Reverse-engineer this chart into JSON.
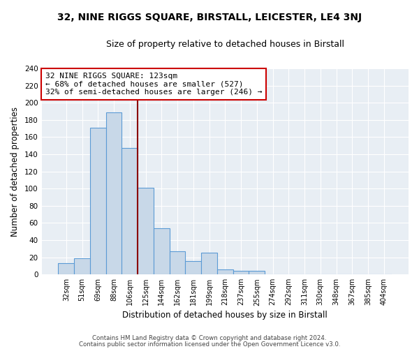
{
  "title": "32, NINE RIGGS SQUARE, BIRSTALL, LEICESTER, LE4 3NJ",
  "subtitle": "Size of property relative to detached houses in Birstall",
  "xlabel": "Distribution of detached houses by size in Birstall",
  "ylabel": "Number of detached properties",
  "bar_color": "#c8d8e8",
  "bar_edge_color": "#5b9bd5",
  "plot_bg_color": "#e8eef4",
  "fig_bg_color": "#ffffff",
  "categories": [
    "32sqm",
    "51sqm",
    "69sqm",
    "88sqm",
    "106sqm",
    "125sqm",
    "144sqm",
    "162sqm",
    "181sqm",
    "199sqm",
    "218sqm",
    "237sqm",
    "255sqm",
    "274sqm",
    "292sqm",
    "311sqm",
    "330sqm",
    "348sqm",
    "367sqm",
    "385sqm",
    "404sqm"
  ],
  "values": [
    13,
    19,
    171,
    189,
    147,
    101,
    54,
    27,
    16,
    25,
    6,
    4,
    4,
    0,
    0,
    0,
    0,
    0,
    0,
    0,
    0
  ],
  "ylim": [
    0,
    240
  ],
  "yticks": [
    0,
    20,
    40,
    60,
    80,
    100,
    120,
    140,
    160,
    180,
    200,
    220,
    240
  ],
  "vline_x": 4.5,
  "vline_color": "#8b0000",
  "annotation_title": "32 NINE RIGGS SQUARE: 123sqm",
  "annotation_line1": "← 68% of detached houses are smaller (527)",
  "annotation_line2": "32% of semi-detached houses are larger (246) →",
  "annotation_box_color": "#ffffff",
  "annotation_box_edge": "#cc0000",
  "footer1": "Contains HM Land Registry data © Crown copyright and database right 2024.",
  "footer2": "Contains public sector information licensed under the Open Government Licence v3.0."
}
